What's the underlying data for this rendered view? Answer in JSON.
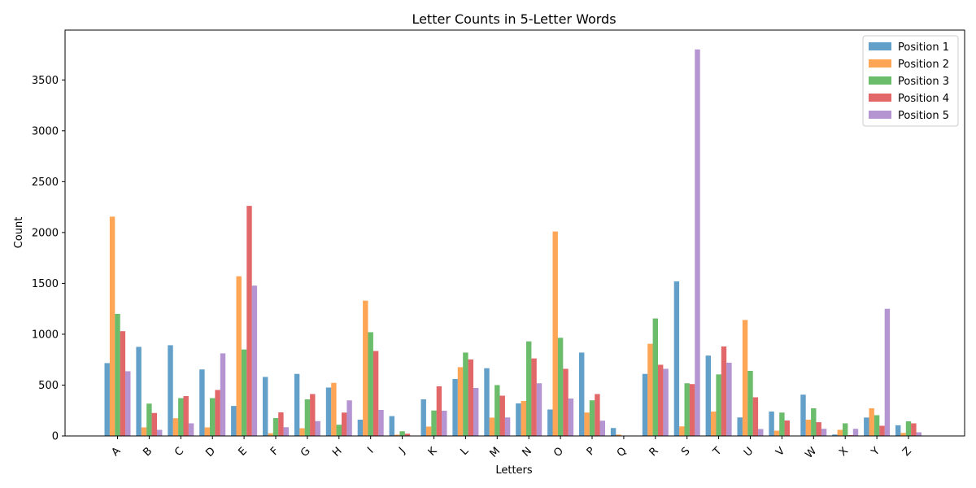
{
  "chart_data": {
    "type": "bar",
    "title": "Letter Counts in 5-Letter Words",
    "xlabel": "Letters",
    "ylabel": "Count",
    "ylim": [
      0,
      3990
    ],
    "yticks": [
      0,
      500,
      1000,
      1500,
      2000,
      2500,
      3000,
      3500
    ],
    "grid": false,
    "legend_position": "top-right",
    "categories": [
      "A",
      "B",
      "C",
      "D",
      "E",
      "F",
      "G",
      "H",
      "I",
      "J",
      "K",
      "L",
      "M",
      "N",
      "O",
      "P",
      "Q",
      "R",
      "S",
      "T",
      "U",
      "V",
      "W",
      "X",
      "Y",
      "Z"
    ],
    "series": [
      {
        "name": "Position 1",
        "color": "#1f77b4",
        "values": [
          716,
          876,
          892,
          654,
          295,
          580,
          610,
          476,
          160,
          195,
          360,
          560,
          666,
          320,
          260,
          820,
          78,
          610,
          1520,
          790,
          182,
          240,
          406,
          14,
          181,
          105
        ]
      },
      {
        "name": "Position 2",
        "color": "#ff7f0e",
        "values": [
          2156,
          84,
          174,
          84,
          1570,
          26,
          76,
          522,
          1330,
          12,
          92,
          676,
          180,
          344,
          2010,
          230,
          14,
          906,
          94,
          240,
          1140,
          52,
          160,
          60,
          272,
          30
        ]
      },
      {
        "name": "Position 3",
        "color": "#2ca02c",
        "values": [
          1200,
          318,
          372,
          372,
          850,
          176,
          360,
          110,
          1020,
          46,
          250,
          820,
          500,
          930,
          965,
          350,
          4,
          1155,
          518,
          605,
          640,
          230,
          272,
          124,
          204,
          144
        ]
      },
      {
        "name": "Position 4",
        "color": "#d62728",
        "values": [
          1030,
          226,
          392,
          452,
          2262,
          232,
          412,
          230,
          835,
          22,
          488,
          752,
          396,
          762,
          660,
          412,
          2,
          700,
          510,
          880,
          380,
          152,
          135,
          8,
          100,
          124
        ]
      },
      {
        "name": "Position 5",
        "color": "#9467bd",
        "values": [
          636,
          60,
          124,
          812,
          1478,
          86,
          146,
          350,
          256,
          4,
          248,
          472,
          182,
          518,
          368,
          150,
          2,
          660,
          3800,
          720,
          68,
          4,
          70,
          70,
          1250,
          36
        ]
      }
    ]
  }
}
